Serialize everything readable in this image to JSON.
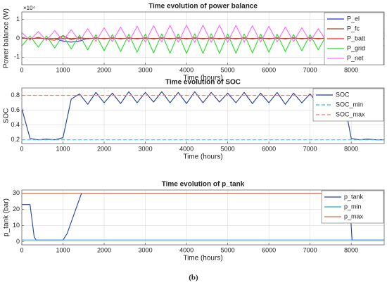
{
  "chart_data": [
    {
      "type": "line",
      "title": "Time evolution of power balance",
      "xlabel": "Time (hours)",
      "ylabel": "Power balance (W)",
      "y_multiplier": "×10⁴",
      "x": [
        0,
        200,
        400,
        600,
        800,
        1000,
        1200,
        1400,
        1600,
        1800,
        2000,
        2200,
        2400,
        2600,
        2800,
        3000,
        3200,
        3400,
        3600,
        3800,
        4000,
        4200,
        4400,
        4600,
        4800,
        5000,
        5200,
        5400,
        5600,
        5800,
        6000,
        6200,
        6400,
        6600,
        6800,
        7000,
        7200,
        7400,
        7600,
        7800,
        8000,
        8200,
        8400,
        8600,
        8800
      ],
      "series": [
        {
          "name": "P_el",
          "color": "#2b2bd6",
          "values": [
            0,
            0,
            0,
            0,
            0,
            -1500,
            -2000,
            -1500,
            0,
            0,
            0,
            0,
            0,
            0,
            0,
            0,
            0,
            0,
            0,
            0,
            0,
            0,
            0,
            0,
            0,
            0,
            0,
            0,
            0,
            0,
            0,
            0,
            0,
            0,
            0,
            0,
            0,
            0,
            0,
            0,
            0,
            0,
            0,
            0,
            0
          ]
        },
        {
          "name": "P_fc",
          "color": "#a0522d",
          "values": [
            0,
            0,
            0,
            0,
            0,
            0,
            0,
            0,
            0,
            0,
            0,
            0,
            0,
            0,
            0,
            0,
            0,
            0,
            0,
            0,
            0,
            0,
            0,
            0,
            0,
            0,
            0,
            0,
            0,
            0,
            0,
            0,
            0,
            0,
            0,
            0,
            0,
            0,
            0,
            0,
            0,
            0,
            0,
            0,
            0
          ]
        },
        {
          "name": "P_batt",
          "color": "#ff2020",
          "values": [
            500,
            -500,
            500,
            -500,
            -1000,
            1500,
            -800,
            500,
            -300,
            300,
            -300,
            300,
            -300,
            300,
            -300,
            300,
            -300,
            300,
            -300,
            300,
            -300,
            300,
            -300,
            300,
            -300,
            300,
            -300,
            300,
            -300,
            300,
            -300,
            300,
            -300,
            300,
            -300,
            300,
            -300,
            300,
            -300,
            300,
            -300,
            300,
            -300,
            300,
            -300
          ]
        },
        {
          "name": "P_grid",
          "color": "#22e022",
          "values": [
            -4000,
            1200,
            -4600,
            1300,
            -5100,
            1500,
            -5600,
            1700,
            -6100,
            1900,
            -6600,
            2000,
            -7000,
            2200,
            -7400,
            2300,
            -7700,
            2400,
            -7900,
            2400,
            -8000,
            2500,
            -8000,
            2500,
            -8000,
            2400,
            -7900,
            2400,
            -7700,
            2300,
            -7400,
            2200,
            -7000,
            2000,
            -6600,
            1900,
            -6100,
            1700,
            -5600,
            1500,
            -5100,
            1300,
            -4600,
            1200,
            -4000
          ]
        },
        {
          "name": "P_net",
          "color": "#ff66ff",
          "values": [
            3000,
            -1000,
            3600,
            -1100,
            4100,
            -1300,
            4600,
            -1500,
            5100,
            -1600,
            5600,
            -1700,
            6000,
            -1900,
            6400,
            -2000,
            6700,
            -2000,
            6900,
            -2100,
            7000,
            -2100,
            7000,
            -2100,
            7000,
            -2100,
            6900,
            -2000,
            6700,
            -2000,
            6400,
            -1900,
            6000,
            -1700,
            5600,
            -1600,
            5100,
            -1500,
            4600,
            -1300,
            4100,
            -1100,
            3600,
            -1000,
            3000
          ]
        }
      ],
      "xlim": [
        0,
        8800
      ],
      "xticks": [
        0,
        1000,
        2000,
        3000,
        4000,
        5000,
        6000,
        7000,
        8000
      ],
      "ylim": [
        -14000,
        14000
      ],
      "yticks": [
        {
          "value": -10000,
          "label": "-1"
        },
        0,
        {
          "value": 10000,
          "label": "1"
        }
      ],
      "grid": true,
      "legend": "upper right"
    },
    {
      "type": "line",
      "title": "Time evolution of SOC",
      "xlabel": "Time (hours)",
      "ylabel": "SOC",
      "x": [
        0,
        200,
        400,
        600,
        800,
        1000,
        1200,
        1400,
        1600,
        1800,
        2000,
        2200,
        2400,
        2600,
        2800,
        3000,
        3200,
        3400,
        3600,
        3800,
        4000,
        4200,
        4400,
        4600,
        4800,
        5000,
        5200,
        5400,
        5600,
        5800,
        6000,
        6200,
        6400,
        6600,
        6800,
        7000,
        7200,
        7400,
        7600,
        7800,
        8000,
        8200,
        8400,
        8600,
        8800
      ],
      "series": [
        {
          "name": "SOC",
          "color": "#1f3a9a",
          "values": [
            0.62,
            0.22,
            0.2,
            0.21,
            0.2,
            0.23,
            0.75,
            0.82,
            0.68,
            0.84,
            0.7,
            0.83,
            0.69,
            0.85,
            0.7,
            0.84,
            0.71,
            0.85,
            0.7,
            0.84,
            0.69,
            0.85,
            0.7,
            0.84,
            0.71,
            0.83,
            0.7,
            0.84,
            0.69,
            0.83,
            0.7,
            0.84,
            0.68,
            0.83,
            0.7,
            0.82,
            0.68,
            0.83,
            0.69,
            0.8,
            0.22,
            0.2,
            0.21,
            0.2,
            0.2
          ]
        },
        {
          "name": "SOC_min",
          "color": "#33bbee",
          "dash": true,
          "x": [
            0,
            8800
          ],
          "values": [
            0.2,
            0.2
          ]
        },
        {
          "name": "SOC_max",
          "color": "#f08060",
          "dash": true,
          "x": [
            0,
            8800
          ],
          "values": [
            0.8,
            0.8
          ]
        }
      ],
      "xlim": [
        0,
        8800
      ],
      "xticks": [
        0,
        1000,
        2000,
        3000,
        4000,
        5000,
        6000,
        7000,
        8000
      ],
      "ylim": [
        0.15,
        0.9
      ],
      "yticks": [
        0.2,
        0.4,
        0.6,
        0.8
      ],
      "grid": true,
      "legend": "upper right"
    },
    {
      "type": "line",
      "title": "Time evolution of p_tank",
      "xlabel": "Time (hours)",
      "ylabel": "p_tank (bar)",
      "x": [
        0,
        200,
        300,
        350,
        1000,
        1100,
        1450,
        7950,
        8020,
        8800
      ],
      "series": [
        {
          "name": "p_tank",
          "color": "#2040b0",
          "values": [
            23,
            23,
            3,
            1,
            1,
            5,
            30,
            30,
            1,
            1
          ]
        },
        {
          "name": "p_min",
          "color": "#22aadd",
          "x": [
            0,
            8800
          ],
          "values": [
            1,
            1
          ]
        },
        {
          "name": "p_max",
          "color": "#ee6633",
          "x": [
            0,
            8800
          ],
          "values": [
            30,
            30
          ]
        }
      ],
      "xlim": [
        0,
        8800
      ],
      "xticks": [
        0,
        1000,
        2000,
        3000,
        4000,
        5000,
        6000,
        7000,
        8000
      ],
      "ylim": [
        -2,
        32
      ],
      "yticks": [
        0,
        10,
        20,
        30
      ],
      "grid": true,
      "legend": "upper right"
    }
  ],
  "caption": "(b)"
}
